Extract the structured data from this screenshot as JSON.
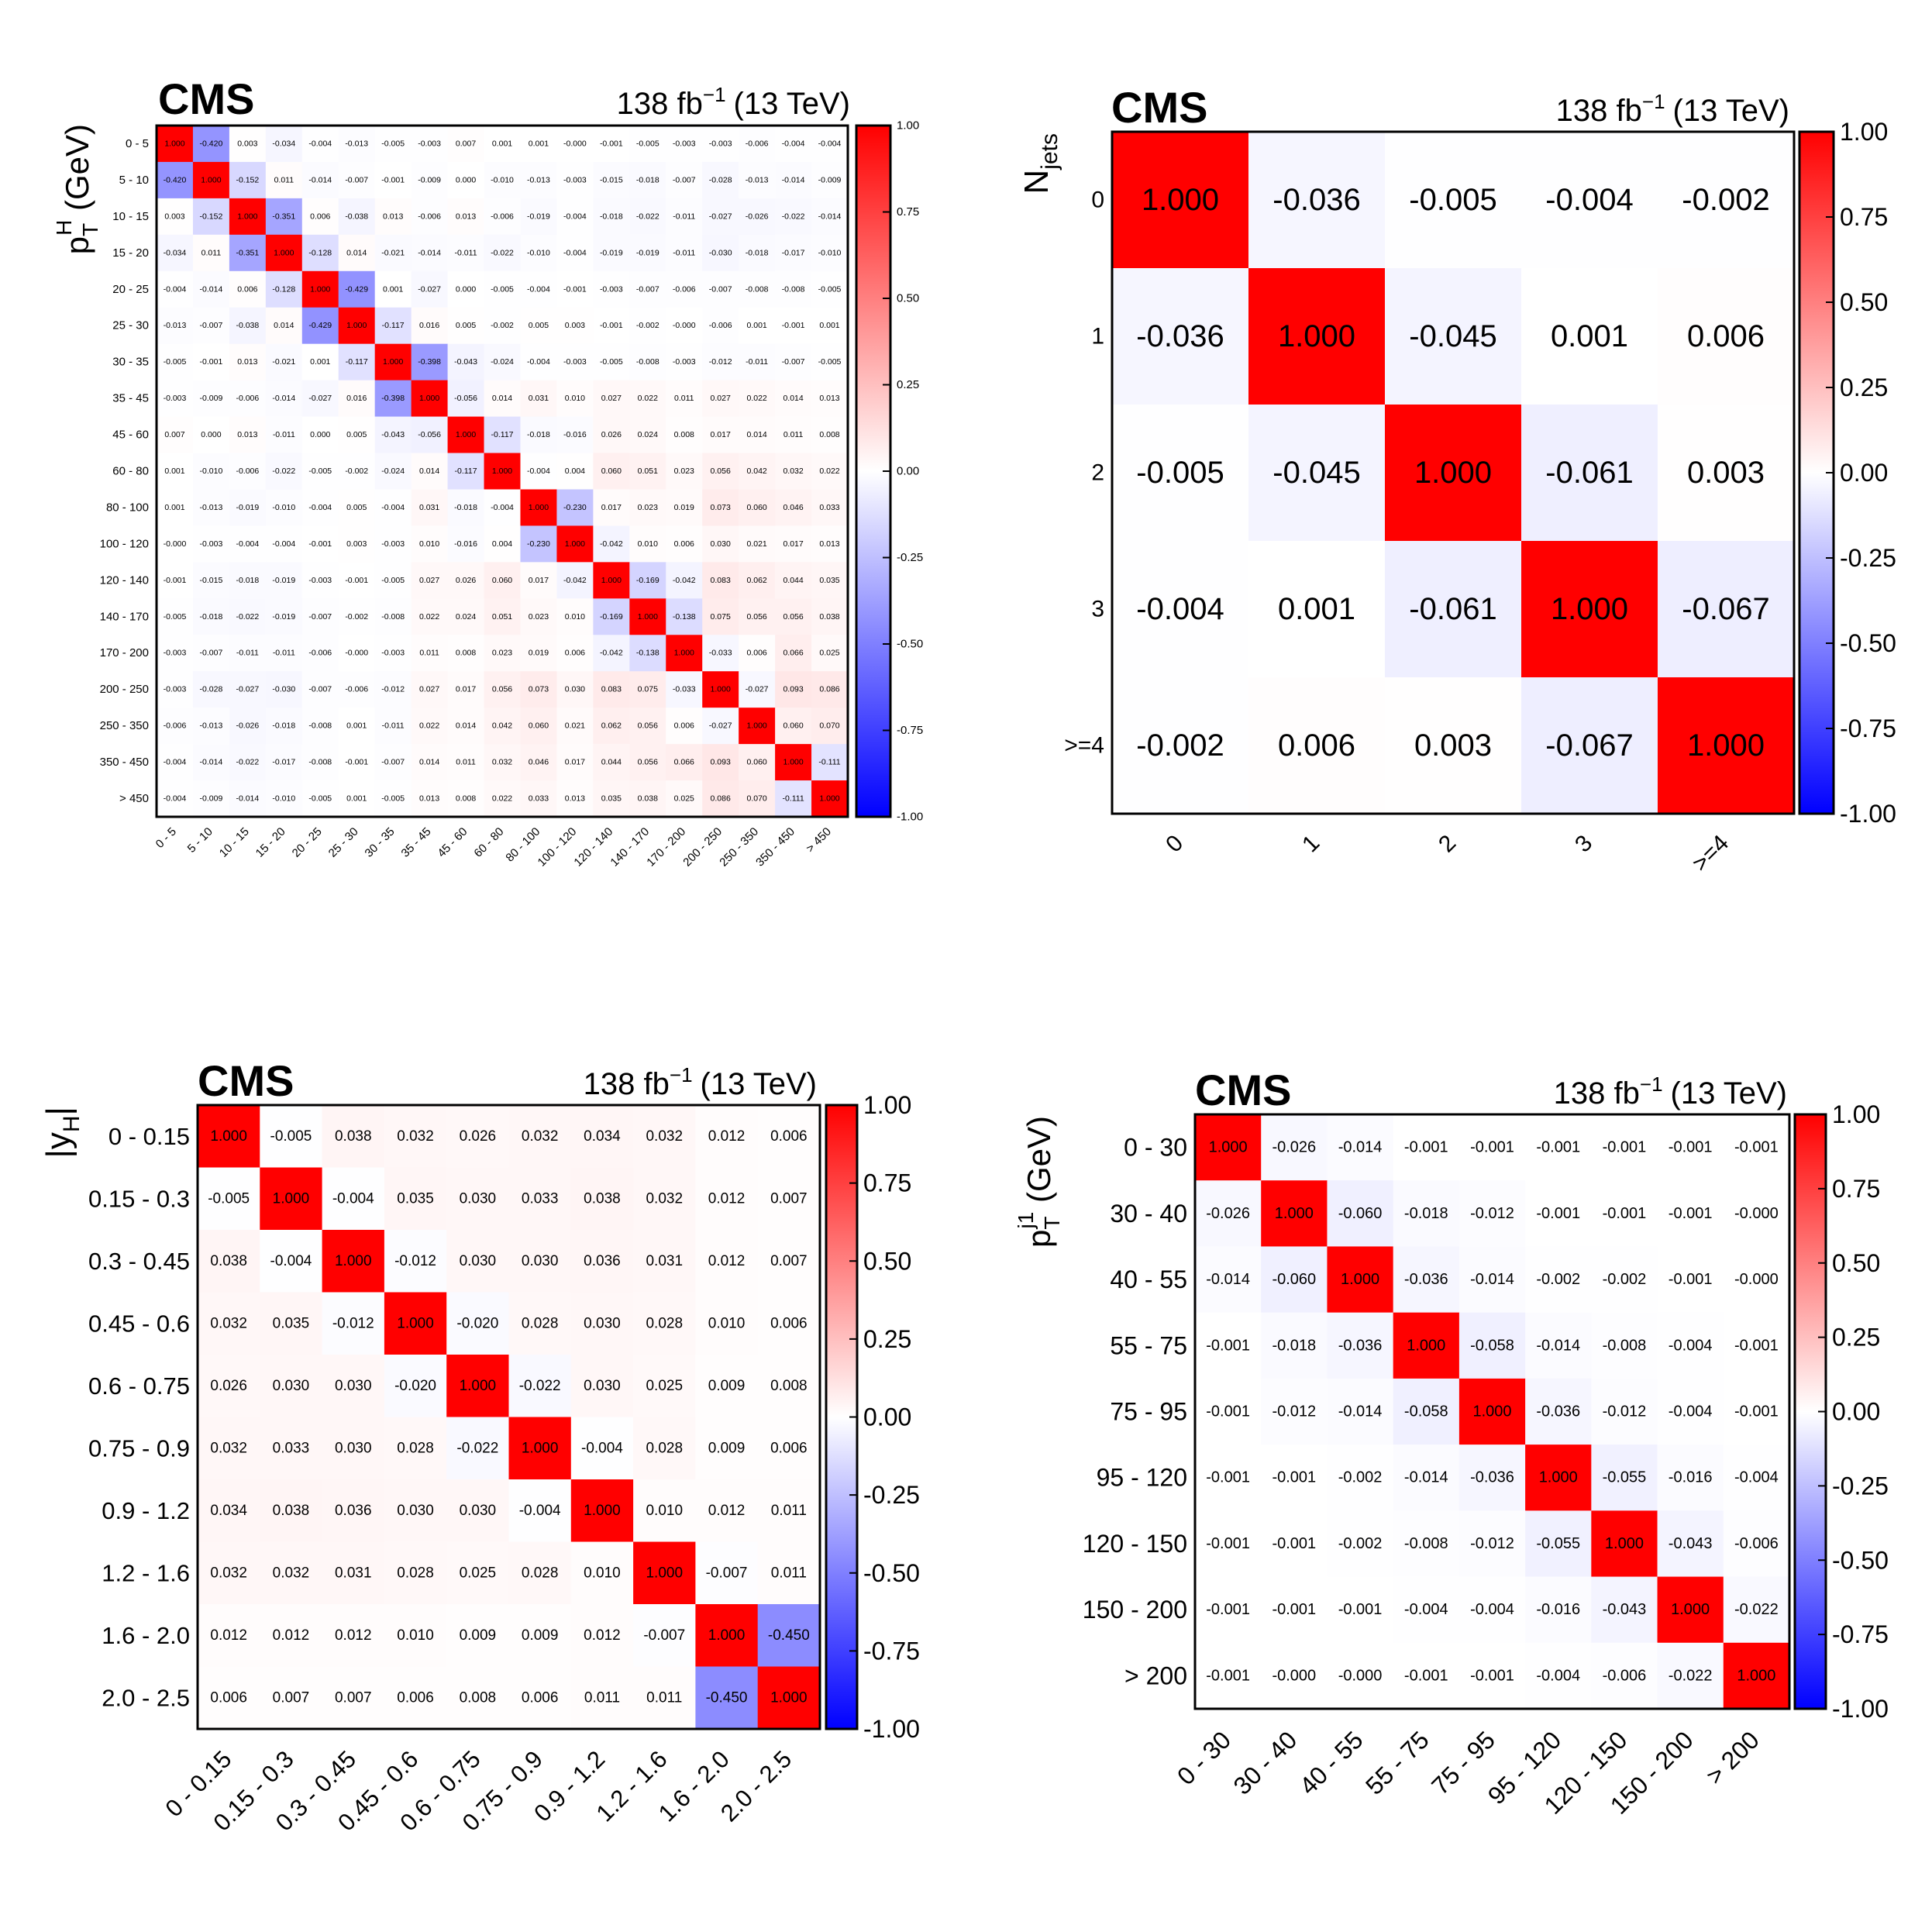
{
  "chart_data": [
    {
      "type": "heatmap",
      "id": "pth",
      "experiment": "CMS",
      "lumi_label": "138 fb",
      "lumi_sup": "−1",
      "energy_label": "(13 TeV)",
      "ylabel": "p",
      "ylabel_sup": "H",
      "ylabel_sub": "T",
      "ylabel_suffix": " (GeV)",
      "xlabel": "",
      "zlim": [
        -1,
        1
      ],
      "z_ticks": [
        "1.00",
        "0.75",
        "0.50",
        "0.25",
        "0.00",
        "-0.25",
        "-0.50",
        "-0.75",
        "-1.00"
      ],
      "categories": [
        "0 - 5",
        "5 - 10",
        "10 - 15",
        "15 - 20",
        "20 - 25",
        "25 - 30",
        "30 - 35",
        "35 - 45",
        "45 - 60",
        "60 - 80",
        "80 - 100",
        "100 - 120",
        "120 - 140",
        "140 - 170",
        "170 - 200",
        "200 - 250",
        "250 - 350",
        "350 - 450",
        "> 450"
      ],
      "labels": [
        [
          "1.000",
          "-0.420",
          "0.003",
          "-0.034",
          "-0.004",
          "-0.013",
          "-0.005",
          "-0.003",
          "0.007",
          "0.001",
          "0.001",
          "-0.000",
          "-0.001",
          "-0.005",
          "-0.003",
          "-0.003",
          "-0.006",
          "-0.004",
          "-0.004"
        ],
        [
          "-0.420",
          "1.000",
          "-0.152",
          "0.011",
          "-0.014",
          "-0.007",
          "-0.001",
          "-0.009",
          "0.000",
          "-0.010",
          "-0.013",
          "-0.003",
          "-0.015",
          "-0.018",
          "-0.007",
          "-0.028",
          "-0.013",
          "-0.014",
          "-0.009"
        ],
        [
          "0.003",
          "-0.152",
          "1.000",
          "-0.351",
          "0.006",
          "-0.038",
          "0.013",
          "-0.006",
          "0.013",
          "-0.006",
          "-0.019",
          "-0.004",
          "-0.018",
          "-0.022",
          "-0.011",
          "-0.027",
          "-0.026",
          "-0.022",
          "-0.014"
        ],
        [
          "-0.034",
          "0.011",
          "-0.351",
          "1.000",
          "-0.128",
          "0.014",
          "-0.021",
          "-0.014",
          "-0.011",
          "-0.022",
          "-0.010",
          "-0.004",
          "-0.019",
          "-0.019",
          "-0.011",
          "-0.030",
          "-0.018",
          "-0.017",
          "-0.010"
        ],
        [
          "-0.004",
          "-0.014",
          "0.006",
          "-0.128",
          "1.000",
          "-0.429",
          "0.001",
          "-0.027",
          "0.000",
          "-0.005",
          "-0.004",
          "-0.001",
          "-0.003",
          "-0.007",
          "-0.006",
          "-0.007",
          "-0.008",
          "-0.008",
          "-0.005"
        ],
        [
          "-0.013",
          "-0.007",
          "-0.038",
          "0.014",
          "-0.429",
          "1.000",
          "-0.117",
          "0.016",
          "0.005",
          "-0.002",
          "0.005",
          "0.003",
          "-0.001",
          "-0.002",
          "-0.000",
          "-0.006",
          "0.001",
          "-0.001",
          "0.001"
        ],
        [
          "-0.005",
          "-0.001",
          "0.013",
          "-0.021",
          "0.001",
          "-0.117",
          "1.000",
          "-0.398",
          "-0.043",
          "-0.024",
          "-0.004",
          "-0.003",
          "-0.005",
          "-0.008",
          "-0.003",
          "-0.012",
          "-0.011",
          "-0.007",
          "-0.005"
        ],
        [
          "-0.003",
          "-0.009",
          "-0.006",
          "-0.014",
          "-0.027",
          "0.016",
          "-0.398",
          "1.000",
          "-0.056",
          "0.014",
          "0.031",
          "0.010",
          "0.027",
          "0.022",
          "0.011",
          "0.027",
          "0.022",
          "0.014",
          "0.013"
        ],
        [
          "0.007",
          "0.000",
          "0.013",
          "-0.011",
          "0.000",
          "0.005",
          "-0.043",
          "-0.056",
          "1.000",
          "-0.117",
          "-0.018",
          "-0.016",
          "0.026",
          "0.024",
          "0.008",
          "0.017",
          "0.014",
          "0.011",
          "0.008"
        ],
        [
          "0.001",
          "-0.010",
          "-0.006",
          "-0.022",
          "-0.005",
          "-0.002",
          "-0.024",
          "0.014",
          "-0.117",
          "1.000",
          "-0.004",
          "0.004",
          "0.060",
          "0.051",
          "0.023",
          "0.056",
          "0.042",
          "0.032",
          "0.022"
        ],
        [
          "0.001",
          "-0.013",
          "-0.019",
          "-0.010",
          "-0.004",
          "0.005",
          "-0.004",
          "0.031",
          "-0.018",
          "-0.004",
          "1.000",
          "-0.230",
          "0.017",
          "0.023",
          "0.019",
          "0.073",
          "0.060",
          "0.046",
          "0.033"
        ],
        [
          "-0.000",
          "-0.003",
          "-0.004",
          "-0.004",
          "-0.001",
          "0.003",
          "-0.003",
          "0.010",
          "-0.016",
          "0.004",
          "-0.230",
          "1.000",
          "-0.042",
          "0.010",
          "0.006",
          "0.030",
          "0.021",
          "0.017",
          "0.013"
        ],
        [
          "-0.001",
          "-0.015",
          "-0.018",
          "-0.019",
          "-0.003",
          "-0.001",
          "-0.005",
          "0.027",
          "0.026",
          "0.060",
          "0.017",
          "-0.042",
          "1.000",
          "-0.169",
          "-0.042",
          "0.083",
          "0.062",
          "0.044",
          "0.035"
        ],
        [
          "-0.005",
          "-0.018",
          "-0.022",
          "-0.019",
          "-0.007",
          "-0.002",
          "-0.008",
          "0.022",
          "0.024",
          "0.051",
          "0.023",
          "0.010",
          "-0.169",
          "1.000",
          "-0.138",
          "0.075",
          "0.056",
          "0.056",
          "0.038"
        ],
        [
          "-0.003",
          "-0.007",
          "-0.011",
          "-0.011",
          "-0.006",
          "-0.000",
          "-0.003",
          "0.011",
          "0.008",
          "0.023",
          "0.019",
          "0.006",
          "-0.042",
          "-0.138",
          "1.000",
          "-0.033",
          "0.006",
          "0.066",
          "0.025"
        ],
        [
          "-0.003",
          "-0.028",
          "-0.027",
          "-0.030",
          "-0.007",
          "-0.006",
          "-0.012",
          "0.027",
          "0.017",
          "0.056",
          "0.073",
          "0.030",
          "0.083",
          "0.075",
          "-0.033",
          "1.000",
          "-0.027",
          "0.093",
          "0.086"
        ],
        [
          "-0.006",
          "-0.013",
          "-0.026",
          "-0.018",
          "-0.008",
          "0.001",
          "-0.011",
          "0.022",
          "0.014",
          "0.042",
          "0.060",
          "0.021",
          "0.062",
          "0.056",
          "0.006",
          "-0.027",
          "1.000",
          "0.060",
          "0.070"
        ],
        [
          "-0.004",
          "-0.014",
          "-0.022",
          "-0.017",
          "-0.008",
          "-0.001",
          "-0.007",
          "0.014",
          "0.011",
          "0.032",
          "0.046",
          "0.017",
          "0.044",
          "0.056",
          "0.066",
          "0.093",
          "0.060",
          "1.000",
          "-0.111"
        ],
        [
          "-0.004",
          "-0.009",
          "-0.014",
          "-0.010",
          "-0.005",
          "0.001",
          "-0.005",
          "0.013",
          "0.008",
          "0.022",
          "0.033",
          "0.013",
          "0.035",
          "0.038",
          "0.025",
          "0.086",
          "0.070",
          "-0.111",
          "1.000"
        ]
      ]
    },
    {
      "type": "heatmap",
      "id": "njets",
      "experiment": "CMS",
      "lumi_label": "138 fb",
      "lumi_sup": "−1",
      "energy_label": "(13 TeV)",
      "ylabel": "N",
      "ylabel_sup": "",
      "ylabel_sub": "jets",
      "ylabel_suffix": "",
      "xlabel": "",
      "zlim": [
        -1,
        1
      ],
      "z_ticks": [
        "1.00",
        "0.75",
        "0.50",
        "0.25",
        "0.00",
        "-0.25",
        "-0.50",
        "-0.75",
        "-1.00"
      ],
      "categories": [
        "0",
        "1",
        "2",
        "3",
        ">=4"
      ],
      "labels": [
        [
          "1.000",
          "-0.036",
          "-0.005",
          "-0.004",
          "-0.002"
        ],
        [
          "-0.036",
          "1.000",
          "-0.045",
          "0.001",
          "0.006"
        ],
        [
          "-0.005",
          "-0.045",
          "1.000",
          "-0.061",
          "0.003"
        ],
        [
          "-0.004",
          "0.001",
          "-0.061",
          "1.000",
          "-0.067"
        ],
        [
          "-0.002",
          "0.006",
          "0.003",
          "-0.067",
          "1.000"
        ]
      ]
    },
    {
      "type": "heatmap",
      "id": "yh",
      "experiment": "CMS",
      "lumi_label": "138 fb",
      "lumi_sup": "−1",
      "energy_label": "(13 TeV)",
      "ylabel": "|y",
      "ylabel_sup": "",
      "ylabel_sub": "H",
      "ylabel_suffix": "|",
      "xlabel": "",
      "zlim": [
        -1,
        1
      ],
      "z_ticks": [
        "1.00",
        "0.75",
        "0.50",
        "0.25",
        "0.00",
        "-0.25",
        "-0.50",
        "-0.75",
        "-1.00"
      ],
      "categories": [
        "0 - 0.15",
        "0.15 - 0.3",
        "0.3 - 0.45",
        "0.45 - 0.6",
        "0.6 - 0.75",
        "0.75 - 0.9",
        "0.9 - 1.2",
        "1.2 - 1.6",
        "1.6 - 2.0",
        "2.0 - 2.5"
      ],
      "labels": [
        [
          "1.000",
          "-0.005",
          "0.038",
          "0.032",
          "0.026",
          "0.032",
          "0.034",
          "0.032",
          "0.012",
          "0.006"
        ],
        [
          "-0.005",
          "1.000",
          "-0.004",
          "0.035",
          "0.030",
          "0.033",
          "0.038",
          "0.032",
          "0.012",
          "0.007"
        ],
        [
          "0.038",
          "-0.004",
          "1.000",
          "-0.012",
          "0.030",
          "0.030",
          "0.036",
          "0.031",
          "0.012",
          "0.007"
        ],
        [
          "0.032",
          "0.035",
          "-0.012",
          "1.000",
          "-0.020",
          "0.028",
          "0.030",
          "0.028",
          "0.010",
          "0.006"
        ],
        [
          "0.026",
          "0.030",
          "0.030",
          "-0.020",
          "1.000",
          "-0.022",
          "0.030",
          "0.025",
          "0.009",
          "0.008"
        ],
        [
          "0.032",
          "0.033",
          "0.030",
          "0.028",
          "-0.022",
          "1.000",
          "-0.004",
          "0.028",
          "0.009",
          "0.006"
        ],
        [
          "0.034",
          "0.038",
          "0.036",
          "0.030",
          "0.030",
          "-0.004",
          "1.000",
          "0.010",
          "0.012",
          "0.011"
        ],
        [
          "0.032",
          "0.032",
          "0.031",
          "0.028",
          "0.025",
          "0.028",
          "0.010",
          "1.000",
          "-0.007",
          "0.011"
        ],
        [
          "0.012",
          "0.012",
          "0.012",
          "0.010",
          "0.009",
          "0.009",
          "0.012",
          "-0.007",
          "1.000",
          "-0.450"
        ],
        [
          "0.006",
          "0.007",
          "0.007",
          "0.006",
          "0.008",
          "0.006",
          "0.011",
          "0.011",
          "-0.450",
          "1.000"
        ]
      ]
    },
    {
      "type": "heatmap",
      "id": "ptj1",
      "experiment": "CMS",
      "lumi_label": "138 fb",
      "lumi_sup": "−1",
      "energy_label": "(13 TeV)",
      "ylabel": "p",
      "ylabel_sup": "j1",
      "ylabel_sub": "T",
      "ylabel_suffix": " (GeV)",
      "xlabel": "",
      "zlim": [
        -1,
        1
      ],
      "z_ticks": [
        "1.00",
        "0.75",
        "0.50",
        "0.25",
        "0.00",
        "-0.25",
        "-0.50",
        "-0.75",
        "-1.00"
      ],
      "categories": [
        "0 - 30",
        "30 - 40",
        "40 - 55",
        "55 - 75",
        "75 - 95",
        "95 - 120",
        "120 - 150",
        "150 - 200",
        "> 200"
      ],
      "labels": [
        [
          "1.000",
          "-0.026",
          "-0.014",
          "-0.001",
          "-0.001",
          "-0.001",
          "-0.001",
          "-0.001",
          "-0.001"
        ],
        [
          "-0.026",
          "1.000",
          "-0.060",
          "-0.018",
          "-0.012",
          "-0.001",
          "-0.001",
          "-0.001",
          "-0.000"
        ],
        [
          "-0.014",
          "-0.060",
          "1.000",
          "-0.036",
          "-0.014",
          "-0.002",
          "-0.002",
          "-0.001",
          "-0.000"
        ],
        [
          "-0.001",
          "-0.018",
          "-0.036",
          "1.000",
          "-0.058",
          "-0.014",
          "-0.008",
          "-0.004",
          "-0.001"
        ],
        [
          "-0.001",
          "-0.012",
          "-0.014",
          "-0.058",
          "1.000",
          "-0.036",
          "-0.012",
          "-0.004",
          "-0.001"
        ],
        [
          "-0.001",
          "-0.001",
          "-0.002",
          "-0.014",
          "-0.036",
          "1.000",
          "-0.055",
          "-0.016",
          "-0.004"
        ],
        [
          "-0.001",
          "-0.001",
          "-0.002",
          "-0.008",
          "-0.012",
          "-0.055",
          "1.000",
          "-0.043",
          "-0.006"
        ],
        [
          "-0.001",
          "-0.001",
          "-0.001",
          "-0.004",
          "-0.004",
          "-0.016",
          "-0.043",
          "1.000",
          "-0.022"
        ],
        [
          "-0.001",
          "-0.000",
          "-0.000",
          "-0.001",
          "-0.001",
          "-0.004",
          "-0.006",
          "-0.022",
          "1.000"
        ]
      ]
    }
  ]
}
